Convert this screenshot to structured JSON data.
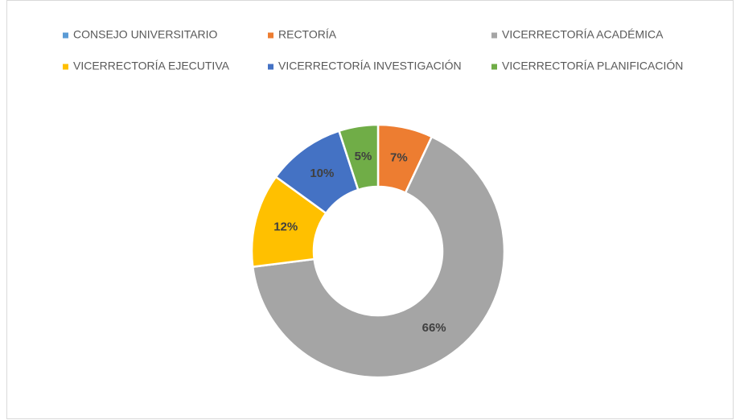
{
  "chart_data": {
    "type": "donut",
    "categories": [
      "CONSEJO UNIVERSITARIO",
      "RECTORÍA",
      "VICERRECTORÍA ACADÉMICA",
      "VICERRECTORÍA EJECUTIVA",
      "VICERRECTORÍA INVESTIGACIÓN",
      "VICERRECTORÍA PLANIFICACIÓN"
    ],
    "values": [
      0,
      7,
      66,
      12,
      10,
      5
    ],
    "value_labels": [
      null,
      "7%",
      "66%",
      "12%",
      "10%",
      "5%"
    ],
    "colors": [
      "#5b9bd5",
      "#ed7d31",
      "#a5a5a5",
      "#ffc000",
      "#4472c4",
      "#70ad47"
    ],
    "legend": "top"
  }
}
